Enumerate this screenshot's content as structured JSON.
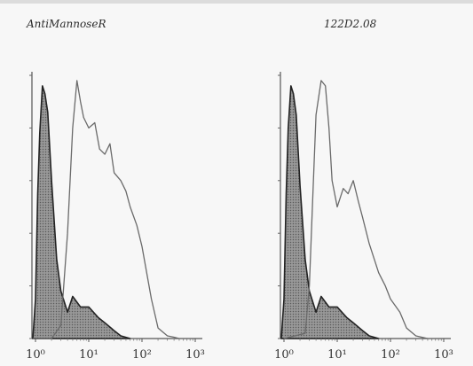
{
  "chart_data": [
    {
      "type": "area",
      "title": "AntiMannoseR",
      "xlabel": "",
      "ylabel": "",
      "x_scale": "log",
      "x_ticks": [
        "10⁰",
        "10¹",
        "10²",
        "10³"
      ],
      "x_tick_values": [
        1,
        10,
        100,
        1000
      ],
      "xlim": [
        1,
        1000
      ],
      "ylim": [
        0,
        100
      ],
      "grid": false,
      "series": [
        {
          "style": "filled-gray",
          "x": [
            0.8,
            1.0,
            1.1,
            1.2,
            1.35,
            1.5,
            1.7,
            2.0,
            2.5,
            3.0,
            4.0,
            5.0,
            7.0,
            10.0,
            15.0,
            20.0,
            30.0,
            40.0,
            60.0
          ],
          "y": [
            0,
            15,
            55,
            78,
            96,
            93,
            86,
            60,
            30,
            18,
            10,
            16,
            12,
            12,
            8,
            6,
            3,
            1,
            0
          ]
        },
        {
          "style": "open-line",
          "x": [
            0.8,
            2.0,
            3.0,
            4.0,
            5.0,
            6.0,
            7.0,
            8.0,
            10.0,
            13.0,
            16.0,
            20.0,
            25.0,
            30.0,
            40.0,
            50.0,
            60.0,
            80.0,
            100.0,
            150.0,
            200.0,
            300.0,
            400.0,
            500.0
          ],
          "y": [
            0,
            0,
            5,
            40,
            80,
            98,
            90,
            84,
            80,
            82,
            72,
            70,
            74,
            63,
            60,
            56,
            50,
            43,
            35,
            15,
            4,
            1,
            0.5,
            0
          ]
        }
      ]
    },
    {
      "type": "area",
      "title": "122D2.08",
      "xlabel": "",
      "ylabel": "",
      "x_scale": "log",
      "x_ticks": [
        "10⁰",
        "10¹",
        "10²",
        "10³"
      ],
      "x_tick_values": [
        1,
        10,
        100,
        1000
      ],
      "xlim": [
        1,
        1000
      ],
      "ylim": [
        0,
        100
      ],
      "grid": false,
      "series": [
        {
          "style": "filled-gray",
          "x": [
            0.8,
            1.0,
            1.1,
            1.2,
            1.35,
            1.5,
            1.7,
            2.0,
            2.5,
            3.0,
            4.0,
            5.0,
            7.0,
            10.0,
            15.0,
            20.0,
            30.0,
            40.0,
            60.0
          ],
          "y": [
            0,
            15,
            55,
            80,
            96,
            93,
            85,
            58,
            30,
            18,
            10,
            16,
            12,
            12,
            8,
            6,
            3,
            1,
            0
          ]
        },
        {
          "style": "open-line",
          "x": [
            1.0,
            2.5,
            3.0,
            3.5,
            4.0,
            5.0,
            6.0,
            7.0,
            8.0,
            10.0,
            13.0,
            16.0,
            20.0,
            25.0,
            30.0,
            40.0,
            50.0,
            60.0,
            80.0,
            100.0,
            150.0,
            200.0,
            300.0,
            500.0
          ],
          "y": [
            0,
            2,
            20,
            55,
            85,
            98,
            96,
            80,
            60,
            50,
            57,
            55,
            60,
            52,
            46,
            36,
            30,
            25,
            20,
            15,
            10,
            4,
            1,
            0
          ]
        }
      ]
    }
  ]
}
